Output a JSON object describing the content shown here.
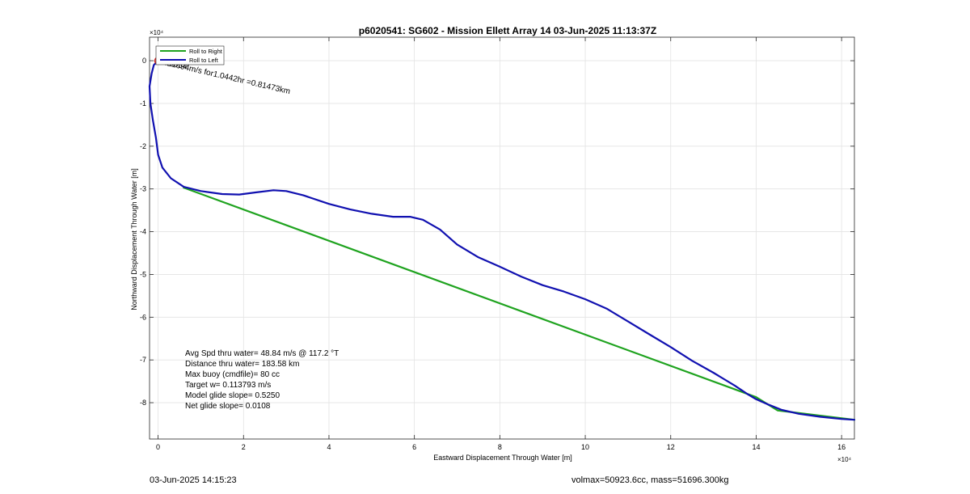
{
  "chart_data": {
    "type": "line",
    "title": "p6020541: SG602 - Mission Ellett Array 14 03-Jun-2025 11:13:37Z",
    "xlabel": "Eastward Displacement Through Water [m]",
    "ylabel": "Northward Displacement Through Water [m]",
    "x_exponent": "×10⁴",
    "y_exponent": "×10⁴",
    "xlim": [
      -0.2,
      16.3
    ],
    "ylim": [
      -8.85,
      0.55
    ],
    "xticks": [
      0,
      2,
      4,
      6,
      8,
      10,
      12,
      14,
      16
    ],
    "xtick_labels": [
      "0",
      "2",
      "4",
      "6",
      "8",
      "10",
      "12",
      "14",
      "16"
    ],
    "yticks": [
      0,
      -1,
      -2,
      -3,
      -4,
      -5,
      -6,
      -7,
      -8
    ],
    "ytick_labels": [
      "0",
      "-1",
      "-2",
      "-3",
      "-4",
      "-5",
      "-6",
      "-7",
      "-8"
    ],
    "grid": true,
    "legend": {
      "position": "top-left",
      "entries": [
        {
          "label": "Roll to Right",
          "color": "#1fa31f"
        },
        {
          "label": "Roll to Left",
          "color": "#1010b0"
        }
      ]
    },
    "series": [
      {
        "name": "Roll to Right",
        "color": "#1fa31f",
        "x": [
          0.6,
          14.0,
          14.5,
          16.3
        ],
        "y": [
          -2.97,
          -7.87,
          -8.18,
          -8.4
        ]
      },
      {
        "name": "Roll to Left",
        "color": "#1010b0",
        "x": [
          0.0,
          -0.1,
          -0.15,
          -0.2,
          -0.18,
          -0.12,
          -0.05,
          0.0,
          0.1,
          0.3,
          0.6,
          1.0,
          1.5,
          1.9,
          2.3,
          2.7,
          3.0,
          3.4,
          4.0,
          4.5,
          5.0,
          5.5,
          5.9,
          6.2,
          6.6,
          7.0,
          7.5,
          8.0,
          8.5,
          9.0,
          9.5,
          10.0,
          10.5,
          11.0,
          11.5,
          12.0,
          12.5,
          13.0,
          13.5,
          13.8,
          14.0,
          14.3,
          14.6,
          15.0,
          15.5,
          16.0,
          16.3
        ],
        "y": [
          0.0,
          -0.1,
          -0.3,
          -0.6,
          -1.0,
          -1.4,
          -1.8,
          -2.2,
          -2.5,
          -2.75,
          -2.95,
          -3.05,
          -3.12,
          -3.13,
          -3.08,
          -3.03,
          -3.05,
          -3.15,
          -3.35,
          -3.48,
          -3.58,
          -3.65,
          -3.65,
          -3.72,
          -3.95,
          -4.3,
          -4.6,
          -4.82,
          -5.05,
          -5.25,
          -5.4,
          -5.58,
          -5.8,
          -6.1,
          -6.4,
          -6.7,
          -7.02,
          -7.3,
          -7.6,
          -7.8,
          -7.92,
          -8.05,
          -8.17,
          -8.26,
          -8.33,
          -8.38,
          -8.4
        ]
      }
    ],
    "markers": [
      {
        "x": 0.0,
        "y": 0.0,
        "color": "#d42020"
      }
    ],
    "annotations": [
      {
        "text": "0.21694m/s for1.0442hr =0.81473km",
        "x": 0.05,
        "y": -0.08,
        "rotate": 13
      },
      {
        "text": "005054",
        "x": 0.05,
        "y": -0.06,
        "rotate": 13
      }
    ],
    "stats": [
      "Avg Spd thru water= 48.84 m/s @ 117.2 °T",
      "Distance thru water= 183.58 km",
      "Max buoy (cmdfile)= 80 cc",
      "Target w= 0.113793 m/s",
      "Model glide slope= 0.5250",
      "Net glide slope= 0.0108"
    ]
  },
  "footer": {
    "timestamp": "03-Jun-2025 14:15:23",
    "mass_info": "volmax=50923.6cc, mass=51696.300kg"
  }
}
